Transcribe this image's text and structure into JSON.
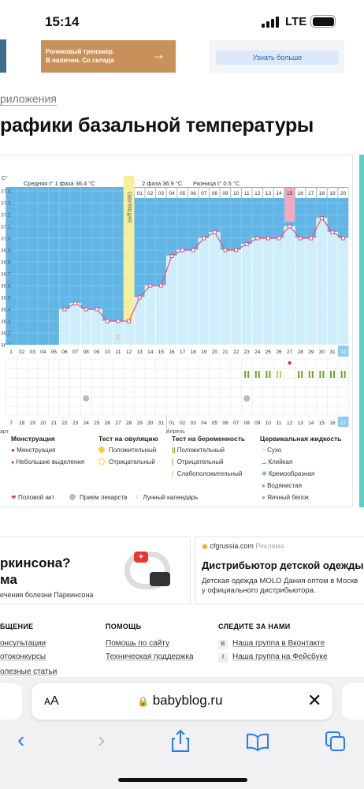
{
  "status_bar": {
    "time": "15:14",
    "network": "LTE"
  },
  "top_ads": {
    "left": [
      "Роликовый тренажер.",
      "В наличии. Со склада"
    ],
    "button": "Узнать больше"
  },
  "breadcrumb": "риложения",
  "title": "рафики базальной температуры",
  "chart": {
    "type": "line",
    "header": {
      "phase1": "Средняя t° 1 фаза 36.4 °C",
      "phase2": "2 фаза 36.9 °C",
      "diff": "Разница t° 0.5 °C",
      "ovulation": "ОВУЛЯЦИЯ"
    },
    "y_unit": "C°",
    "ylim": [
      36.1,
      37.4
    ],
    "yticks": [
      37.4,
      37.3,
      37.2,
      37.1,
      {
        "value": 37,
        "label": "37.0"
      },
      36.9,
      36.8,
      36.7,
      36.6,
      36.5,
      36.4,
      36.3,
      36.2,
      36.1
    ],
    "cycle_days": [
      "1",
      "02",
      "03",
      "04",
      "05",
      "06",
      "07",
      "08",
      "09",
      "10",
      "11",
      "12",
      "13",
      "14",
      "15",
      "16",
      "17",
      "18",
      "19",
      "20",
      "21",
      "22",
      "23",
      "24",
      "25",
      "26",
      "27",
      "28",
      "29",
      "30",
      "31",
      "32"
    ],
    "phase2_days": [
      "01",
      "02",
      "03",
      "04",
      "05",
      "06",
      "07",
      "08",
      "09",
      "10",
      "11",
      "12",
      "13",
      "14",
      "15",
      "16",
      "17",
      "18",
      "19",
      "20"
    ],
    "dates": [
      "7",
      "18",
      "19",
      "20",
      "21",
      "22",
      "23",
      "24",
      "25",
      "26",
      "27",
      "28",
      "29",
      "30",
      "31",
      "01",
      "02",
      "03",
      "04",
      "05",
      "06",
      "07",
      "08",
      "09",
      "10",
      "11",
      "12",
      "13",
      "14",
      "15",
      "16",
      "17"
    ],
    "months": [
      "арт",
      "Апрель"
    ],
    "temperatures": [
      null,
      null,
      null,
      null,
      null,
      36.4,
      36.45,
      36.4,
      36.4,
      36.3,
      36.3,
      36.3,
      36.5,
      36.6,
      36.6,
      36.85,
      36.9,
      36.9,
      37.0,
      37.05,
      36.9,
      36.9,
      36.95,
      37.0,
      37.0,
      37.0,
      37.1,
      37.0,
      37.0,
      37.17,
      37.05,
      37.0
    ],
    "color": "#e8507a"
  },
  "legend": {
    "menstruation": {
      "title": "Менструация",
      "items": [
        "Менструация",
        "Небольшие выделения"
      ]
    },
    "ovulation_test": {
      "title": "Тест на овуляцию",
      "items": [
        "Положительный",
        "Отрицательный"
      ]
    },
    "pregnancy_test": {
      "title": "Тест на беременность",
      "items": [
        "Положительный",
        "Отрицательный",
        "Слабоположительный"
      ]
    },
    "cervical": {
      "title": "Цервикальная жидкость",
      "items": [
        "Сухо",
        "Клейкая",
        "Кремообразная",
        "Водянистая",
        "Яичный белок"
      ]
    },
    "other": [
      "Половой акт",
      "Прием лекарств",
      "Лунный календарь"
    ]
  },
  "ads": {
    "left": [
      "ркинсона?",
      "ма",
      "ечения болезни Паркинсона"
    ],
    "right": {
      "domain": "cfgrussia.com",
      "tag": "Реклама",
      "title": "Дистрибьютор детской одежды",
      "text": [
        "Детская одежда MOLO Дания оптом в Москв",
        "у официального дистрибьютора."
      ]
    }
  },
  "footer": {
    "col1": {
      "title": "БЩЕНИЕ",
      "links": [
        "онсультации",
        "отоконкурсы",
        "олезные статьи"
      ]
    },
    "col2": {
      "title": "ПОМОЩЬ",
      "links": [
        "Помощь по сайту",
        "Техническая поддержка"
      ]
    },
    "col3": {
      "title": "СЛЕДИТЕ ЗА НАМИ",
      "links": [
        "Наша группа в Вконтакте",
        "Наша группа на Фейсбуке"
      ]
    }
  },
  "browser": {
    "font_button": "ᴀA",
    "url": "babyblog.ru"
  }
}
